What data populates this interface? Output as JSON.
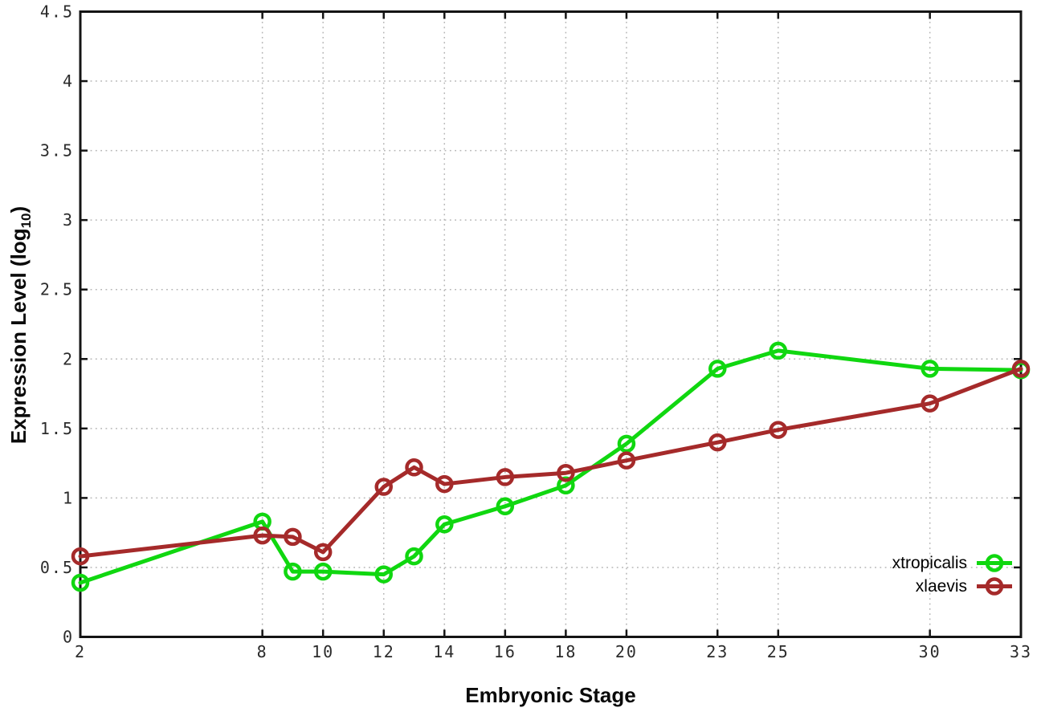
{
  "chart_data": {
    "type": "line",
    "title": "",
    "xlabel": "Embryonic Stage",
    "ylabel": "Expression Level (log10)",
    "ylabel_parts": {
      "main": "Expression Level (log",
      "sub": "10",
      "close": ")"
    },
    "x": [
      2,
      8,
      9,
      10,
      12,
      13,
      14,
      16,
      18,
      20,
      23,
      25,
      30,
      33
    ],
    "xticks": [
      2,
      8,
      10,
      12,
      14,
      16,
      18,
      20,
      23,
      25,
      30,
      33
    ],
    "yticks": [
      0,
      0.5,
      1,
      1.5,
      2,
      2.5,
      3,
      3.5,
      4,
      4.5
    ],
    "xlim": [
      2,
      33
    ],
    "ylim": [
      0,
      4.5
    ],
    "grid": true,
    "legend_position": "inside bottom-right",
    "series": [
      {
        "name": "xtropicalis",
        "color": "#10d710",
        "values": [
          0.39,
          0.83,
          0.47,
          0.47,
          0.45,
          0.58,
          0.81,
          0.94,
          1.09,
          1.39,
          1.93,
          2.06,
          1.93,
          1.92
        ]
      },
      {
        "name": "xlaevis",
        "color": "#a52a2a",
        "values": [
          0.58,
          0.73,
          0.72,
          0.61,
          1.08,
          1.22,
          1.1,
          1.15,
          1.18,
          1.27,
          1.4,
          1.49,
          1.68,
          1.93
        ]
      }
    ],
    "style": {
      "axis_color": "#141414",
      "grid_color": "#b5b5b5",
      "tick_label_color": "#2b2b2b",
      "background": "#ffffff"
    }
  }
}
